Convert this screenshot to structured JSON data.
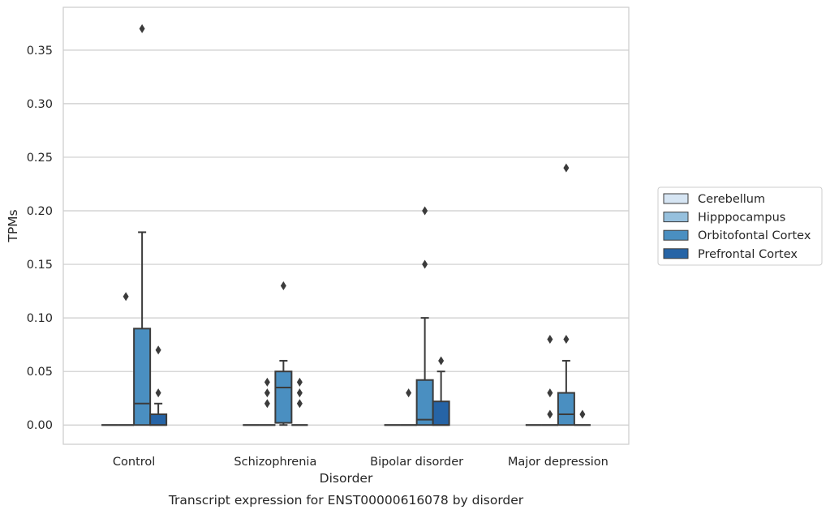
{
  "chart_data": {
    "type": "box",
    "xlabel": "Disorder",
    "ylabel": "TPMs",
    "caption": "Transcript expression for ENST00000616078 by disorder",
    "ylim": [
      -0.018,
      0.39
    ],
    "yticks": [
      "0.00",
      "0.05",
      "0.10",
      "0.15",
      "0.20",
      "0.25",
      "0.30",
      "0.35"
    ],
    "grid": "horizontal",
    "legend_position": "right",
    "categories": [
      "Control",
      "Schizophrenia",
      "Bipolar disorder",
      "Major depression"
    ],
    "series": [
      {
        "name": "Cerebellum",
        "color": "#d6e5f3",
        "boxes": [
          {
            "q1": 0,
            "median": 0,
            "q3": 0,
            "whislo": 0,
            "whishi": 0,
            "fliers": []
          },
          {
            "q1": 0,
            "median": 0,
            "q3": 0,
            "whislo": 0,
            "whishi": 0,
            "fliers": []
          },
          {
            "q1": 0,
            "median": 0,
            "q3": 0,
            "whislo": 0,
            "whishi": 0,
            "fliers": []
          },
          {
            "q1": 0,
            "median": 0,
            "q3": 0,
            "whislo": 0,
            "whishi": 0,
            "fliers": []
          }
        ]
      },
      {
        "name": "Hipppocampus",
        "color": "#96c0dd",
        "boxes": [
          {
            "q1": 0,
            "median": 0,
            "q3": 0,
            "whislo": 0,
            "whishi": 0,
            "fliers": [
              0.12
            ]
          },
          {
            "q1": 0,
            "median": 0,
            "q3": 0,
            "whislo": 0,
            "whishi": 0,
            "fliers": [
              0.02,
              0.03,
              0.04
            ]
          },
          {
            "q1": 0,
            "median": 0,
            "q3": 0,
            "whislo": 0,
            "whishi": 0,
            "fliers": [
              0.03
            ]
          },
          {
            "q1": 0,
            "median": 0,
            "q3": 0,
            "whislo": 0,
            "whishi": 0,
            "fliers": [
              0.03,
              0.01,
              0.08
            ]
          }
        ]
      },
      {
        "name": "Orbitofontal Cortex",
        "color": "#4a8fc1",
        "boxes": [
          {
            "q1": 0,
            "median": 0.02,
            "q3": 0.09,
            "whislo": 0,
            "whishi": 0.18,
            "fliers": [
              0.37
            ]
          },
          {
            "q1": 0.002,
            "median": 0.035,
            "q3": 0.05,
            "whislo": 0,
            "whishi": 0.06,
            "fliers": [
              0.13
            ]
          },
          {
            "q1": 0,
            "median": 0.005,
            "q3": 0.042,
            "whislo": 0,
            "whishi": 0.1,
            "fliers": [
              0.15,
              0.2
            ]
          },
          {
            "q1": 0,
            "median": 0.01,
            "q3": 0.03,
            "whislo": 0,
            "whishi": 0.06,
            "fliers": [
              0.08,
              0.24
            ]
          }
        ]
      },
      {
        "name": "Prefrontal Cortex",
        "color": "#2664a6",
        "boxes": [
          {
            "q1": 0,
            "median": 0,
            "q3": 0.01,
            "whislo": 0,
            "whishi": 0.02,
            "fliers": [
              0.03,
              0.07
            ]
          },
          {
            "q1": 0,
            "median": 0,
            "q3": 0,
            "whislo": 0,
            "whishi": 0,
            "fliers": [
              0.02,
              0.03,
              0.04
            ]
          },
          {
            "q1": 0,
            "median": 0,
            "q3": 0.022,
            "whislo": 0,
            "whishi": 0.05,
            "fliers": [
              0.06
            ]
          },
          {
            "q1": 0,
            "median": 0,
            "q3": 0,
            "whislo": 0,
            "whishi": 0,
            "fliers": [
              0.01
            ]
          }
        ]
      }
    ]
  }
}
